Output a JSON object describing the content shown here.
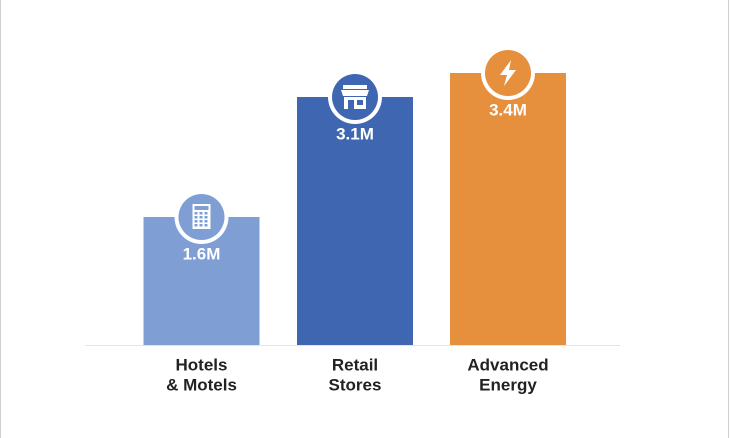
{
  "chart_data": {
    "type": "bar",
    "categories": [
      [
        "Hotels",
        "& Motels"
      ],
      [
        "Retail",
        "Stores"
      ],
      [
        "Advanced",
        "Energy"
      ]
    ],
    "values": [
      1.6,
      3.1,
      3.4
    ],
    "value_labels": [
      "1.6M",
      "3.1M",
      "3.4M"
    ],
    "colors": [
      "#7f9fd4",
      "#3f67b1",
      "#e68f3c"
    ],
    "ylim": [
      0,
      4
    ]
  }
}
